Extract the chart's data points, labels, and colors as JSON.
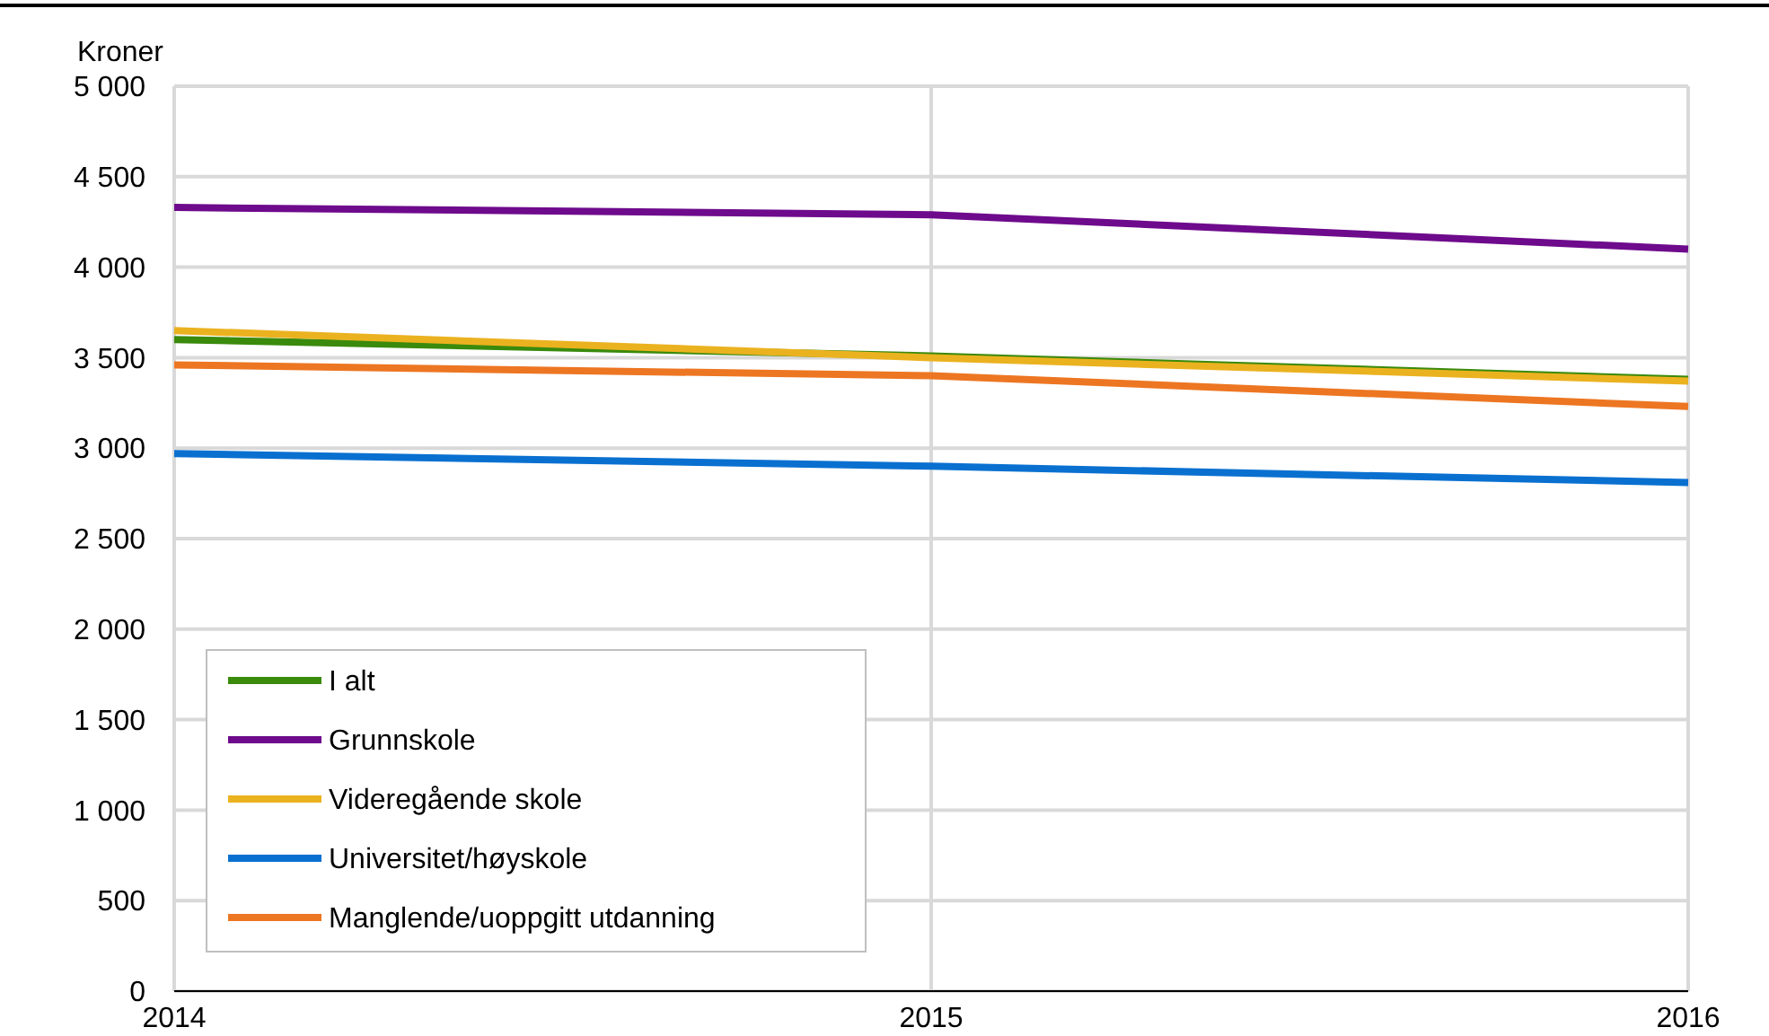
{
  "chart_data": {
    "type": "line",
    "ylabel": "Kroner",
    "x": [
      2014,
      2015,
      2016
    ],
    "xlim": [
      2014,
      2016
    ],
    "xticks": [
      2014,
      2015,
      2016
    ],
    "ylim": [
      0,
      5000
    ],
    "yticks": [
      {
        "value": 0,
        "label": "0"
      },
      {
        "value": 500,
        "label": "500"
      },
      {
        "value": 1000,
        "label": "1 000"
      },
      {
        "value": 1500,
        "label": "1 500"
      },
      {
        "value": 2000,
        "label": "2 000"
      },
      {
        "value": 2500,
        "label": "2 500"
      },
      {
        "value": 3000,
        "label": "3 000"
      },
      {
        "value": 3500,
        "label": "3 500"
      },
      {
        "value": 4000,
        "label": "4 000"
      },
      {
        "value": 4500,
        "label": "4 500"
      },
      {
        "value": 5000,
        "label": "5 000"
      }
    ],
    "grid": true,
    "legend": "bottom left",
    "line_style": "solid",
    "series": [
      {
        "name": "I alt",
        "color": "#3a8a0c",
        "values": [
          3600,
          3510,
          3380
        ]
      },
      {
        "name": "Grunnskole",
        "color": "#6e0a8c",
        "values": [
          4330,
          4290,
          4100
        ]
      },
      {
        "name": "Videregående skole",
        "color": "#ebb220",
        "values": [
          3650,
          3500,
          3370
        ]
      },
      {
        "name": "Universitet/høyskole",
        "color": "#0a70d0",
        "values": [
          2970,
          2900,
          2810
        ]
      },
      {
        "name": "Manglende/uoppgitt utdanning",
        "color": "#ed7622",
        "values": [
          3460,
          3400,
          3230
        ]
      }
    ]
  }
}
